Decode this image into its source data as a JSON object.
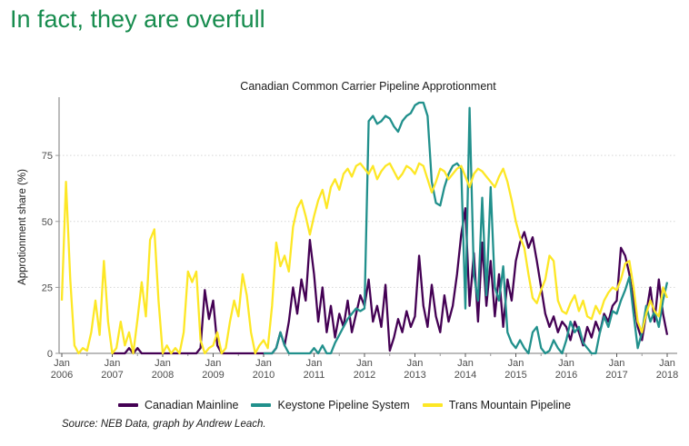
{
  "slide": {
    "title": "In fact, they are overfull",
    "title_color": "#178c4e",
    "source_note": "Source: NEB Data, graph by Andrew Leach."
  },
  "chart_data": {
    "type": "line",
    "title": "Canadian Common Carrier Pipeline Approtionment",
    "ylabel": "Approtionment share (%)",
    "xlabel": "",
    "x_unit": "month",
    "x_start": "2006-01",
    "x_end": "2018-01",
    "ylim": [
      0,
      97
    ],
    "y_ticks": [
      0,
      25,
      50,
      75
    ],
    "x_tick_month_label": "Jan",
    "x_tick_years": [
      "2006",
      "2007",
      "2008",
      "2009",
      "2010",
      "2011",
      "2012",
      "2013",
      "2014",
      "2015",
      "2016",
      "2017",
      "2018"
    ],
    "grid": {
      "horizontal_dotted_at": [
        25,
        50,
        75
      ],
      "color": "#d6d6d6"
    },
    "axis_color": "#7a7a7a",
    "tick_text_color": "#4d4d4d",
    "legend_position": "bottom",
    "series": [
      {
        "name": "Canadian Mainline",
        "color": "#440154",
        "values": [
          null,
          null,
          null,
          null,
          null,
          null,
          null,
          null,
          null,
          null,
          null,
          null,
          0,
          0,
          0,
          0,
          2,
          0,
          2,
          0,
          0,
          0,
          0,
          0,
          0,
          0,
          0,
          0,
          0,
          0,
          0,
          0,
          0,
          2,
          24,
          13,
          20,
          3,
          0,
          0,
          0,
          0,
          0,
          0,
          0,
          0,
          0,
          0,
          0,
          0,
          0,
          2,
          8,
          3,
          12,
          25,
          15,
          28,
          20,
          43,
          30,
          12,
          25,
          8,
          18,
          6,
          15,
          10,
          20,
          8,
          15,
          22,
          18,
          28,
          12,
          18,
          10,
          26,
          1,
          6,
          13,
          8,
          16,
          10,
          14,
          37,
          18,
          10,
          26,
          14,
          8,
          22,
          12,
          18,
          30,
          45,
          55,
          18,
          38,
          12,
          42,
          18,
          35,
          14,
          30,
          10,
          28,
          20,
          35,
          42,
          46,
          40,
          44,
          35,
          25,
          15,
          10,
          14,
          8,
          12,
          10,
          5,
          12,
          8,
          3,
          10,
          6,
          12,
          8,
          15,
          12,
          18,
          20,
          40,
          37,
          30,
          20,
          10,
          5,
          15,
          25,
          12,
          28,
          15,
          7
        ]
      },
      {
        "name": "Keystone Pipeline System",
        "color": "#21908C",
        "values": [
          null,
          null,
          null,
          null,
          null,
          null,
          null,
          null,
          null,
          null,
          null,
          null,
          null,
          null,
          null,
          null,
          null,
          null,
          null,
          null,
          null,
          null,
          null,
          null,
          null,
          null,
          null,
          null,
          null,
          null,
          null,
          null,
          null,
          null,
          null,
          null,
          null,
          null,
          null,
          null,
          null,
          null,
          null,
          null,
          null,
          null,
          null,
          null,
          0,
          0,
          0,
          2,
          8,
          3,
          0,
          0,
          0,
          0,
          0,
          0,
          2,
          0,
          3,
          0,
          0,
          4,
          7,
          10,
          13,
          15,
          17,
          16,
          17,
          88,
          90,
          87,
          88,
          90,
          89,
          86,
          84,
          88,
          90,
          91,
          94,
          95,
          95,
          90,
          65,
          57,
          56,
          63,
          68,
          71,
          72,
          70,
          17,
          93,
          30,
          20,
          59,
          22,
          63,
          25,
          20,
          33,
          8,
          4,
          2,
          5,
          2,
          0,
          8,
          10,
          2,
          0,
          1,
          5,
          2,
          0,
          5,
          12,
          8,
          10,
          4,
          2,
          0,
          0,
          8,
          14,
          10,
          16,
          15,
          20,
          24,
          29,
          15,
          2,
          8,
          18,
          12,
          16,
          10,
          20,
          27
        ]
      },
      {
        "name": "Trans Mountain Pipeline",
        "color": "#FDE725",
        "values": [
          20,
          65,
          28,
          3,
          0,
          2,
          1,
          8,
          20,
          7,
          35,
          12,
          0,
          2,
          12,
          3,
          8,
          0,
          13,
          27,
          14,
          43,
          47,
          20,
          0,
          3,
          0,
          2,
          0,
          8,
          31,
          27,
          31,
          5,
          0,
          2,
          3,
          8,
          0,
          2,
          12,
          20,
          14,
          30,
          22,
          8,
          0,
          3,
          5,
          2,
          18,
          42,
          33,
          37,
          31,
          48,
          55,
          58,
          52,
          45,
          52,
          58,
          62,
          55,
          63,
          66,
          62,
          68,
          70,
          67,
          71,
          72,
          70,
          68,
          71,
          66,
          69,
          71,
          72,
          69,
          66,
          68,
          71,
          70,
          68,
          72,
          71,
          66,
          61,
          65,
          70,
          69,
          66,
          68,
          70,
          71,
          67,
          63,
          68,
          70,
          69,
          67,
          65,
          63,
          67,
          70,
          65,
          58,
          50,
          44,
          40,
          30,
          21,
          19,
          24,
          28,
          37,
          35,
          20,
          16,
          15,
          19,
          22,
          16,
          20,
          14,
          13,
          18,
          15,
          20,
          23,
          25,
          24,
          28,
          34,
          35,
          25,
          12,
          8,
          15,
          20,
          16,
          14,
          25,
          21
        ]
      }
    ]
  }
}
